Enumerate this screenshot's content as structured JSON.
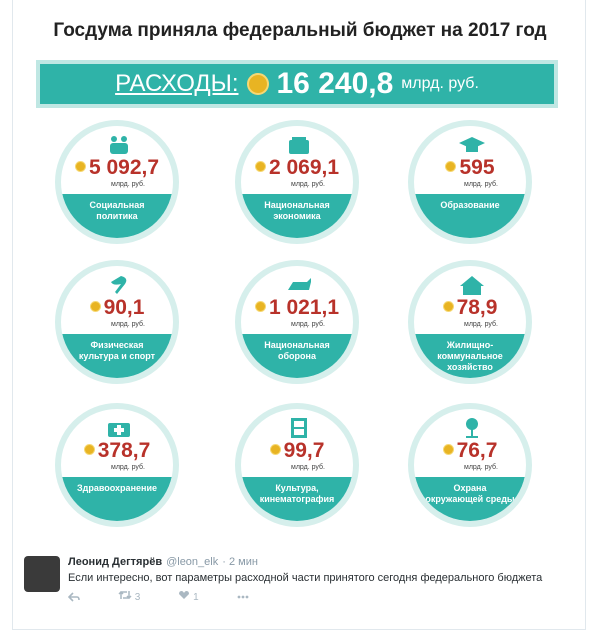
{
  "infographic": {
    "title": "Госдума приняла федеральный бюджет на 2017 год",
    "total": {
      "label": "РАСХОДЫ:",
      "value": "16 240,8",
      "unit": "млрд. руб."
    },
    "items": [
      {
        "value": "5 092,7",
        "unit": "млрд. руб.",
        "label": "Социальная политика"
      },
      {
        "value": "2 069,1",
        "unit": "млрд. руб.",
        "label": "Национальная экономика"
      },
      {
        "value": "595",
        "unit": "млрд. руб.",
        "label": "Образование"
      },
      {
        "value": "90,1",
        "unit": "млрд. руб.",
        "label": "Физическая культура и спорт"
      },
      {
        "value": "1 021,1",
        "unit": "млрд. руб.",
        "label": "Национальная оборона"
      },
      {
        "value": "78,9",
        "unit": "млрд. руб.",
        "label": "Жилищно-коммунальное хозяйство"
      },
      {
        "value": "378,7",
        "unit": "млрд. руб.",
        "label": "Здравоохранение"
      },
      {
        "value": "99,7",
        "unit": "млрд. руб.",
        "label": "Культура, кинематография"
      },
      {
        "value": "76,7",
        "unit": "млрд. руб.",
        "label": "Охрана окружающей среды"
      }
    ]
  },
  "tweet": {
    "author": "Леонид Дегтярёв",
    "handle": "@leon_elk",
    "time": "· 2 мин",
    "text": "Если интересно, вот параметры расходной части принятого сегодня федерального бюджета",
    "retweets": "3",
    "likes": "1"
  }
}
